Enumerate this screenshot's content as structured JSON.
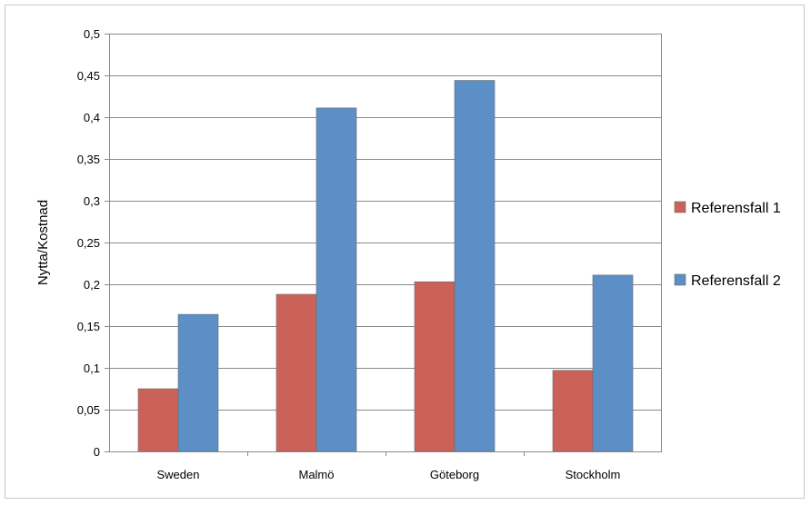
{
  "chart_data": {
    "type": "bar",
    "categories": [
      "Sweden",
      "Malmö",
      "Göteborg",
      "Stockholm"
    ],
    "series": [
      {
        "name": "Referensfall 1",
        "color": "#cb6259",
        "values": [
          0.075,
          0.188,
          0.203,
          0.097
        ]
      },
      {
        "name": "Referensfall 2",
        "color": "#5b8fc5",
        "values": [
          0.164,
          0.411,
          0.444,
          0.211
        ]
      }
    ],
    "xlabel": "",
    "ylabel": "Nytta/Kostnad",
    "ylim": [
      0,
      0.5
    ],
    "yticks": [
      "0",
      "0,05",
      "0,1",
      "0,15",
      "0,2",
      "0,25",
      "0,3",
      "0,35",
      "0,4",
      "0,45",
      "0,5"
    ],
    "grid": true,
    "legend_position": "right"
  }
}
